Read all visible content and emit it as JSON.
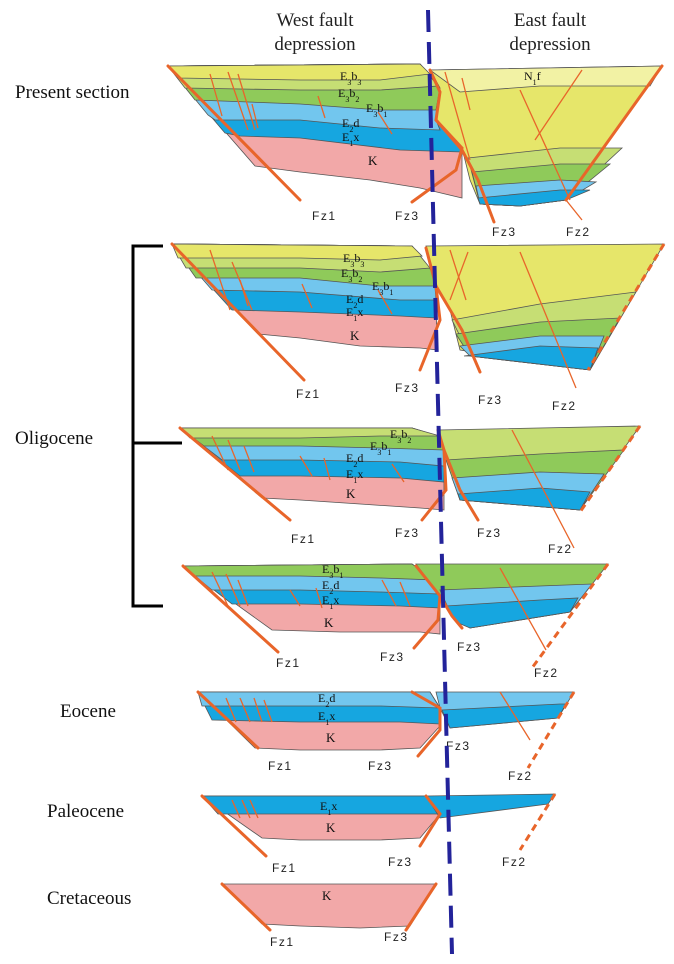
{
  "headers": {
    "west_line1": "West fault",
    "west_line2": "depression",
    "east_line1": "East fault",
    "east_line2": "depression"
  },
  "stage_labels": {
    "present": "Present section",
    "oligocene": "Oligocene",
    "eocene": "Eocene",
    "paleocene": "Paleocene",
    "cretaceous": "Cretaceous"
  },
  "units": {
    "n1f": "N1f",
    "e3b3": "E3b3",
    "e3b2": "E3b2",
    "e3b1": "E3b1",
    "e2d": "E2d",
    "e1x": "E1x",
    "k": "K"
  },
  "faults": {
    "fz1": "Fz1",
    "fz2": "Fz2",
    "fz3": "Fz3"
  },
  "colors": {
    "n1f": "#f2f2a4",
    "e3b3": "#e6e66a",
    "e3b2": "#c6de74",
    "e3b1": "#8fca5a",
    "e2d": "#72c6ee",
    "e1x": "#16a6e0",
    "k": "#f2a8a8",
    "fault": "#e8652a",
    "divider": "#23239a"
  }
}
